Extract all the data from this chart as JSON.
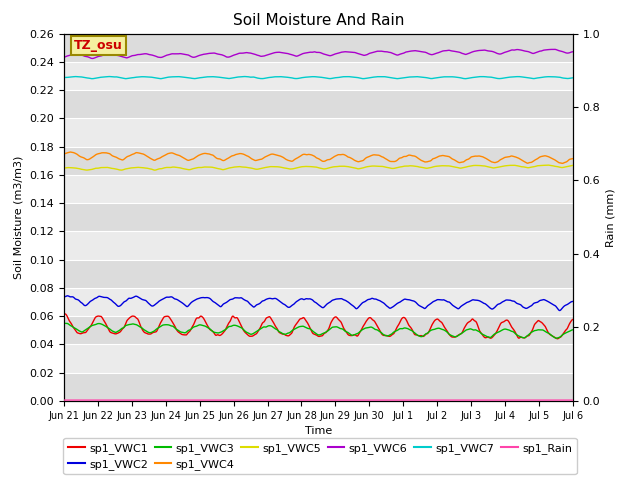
{
  "title": "Soil Moisture And Rain",
  "ylabel_left": "Soil Moisture (m3/m3)",
  "ylabel_right": "Rain (mm)",
  "xlabel": "Time",
  "ylim_left": [
    0.0,
    0.26
  ],
  "ylim_right": [
    0.0,
    1.0
  ],
  "bg_dark": "#dcdcdc",
  "bg_light": "#ebebeb",
  "station_label": "TZ_osu",
  "station_label_color": "#cc0000",
  "station_label_bg": "#f5f0a0",
  "x_tick_labels": [
    "Jun 21",
    "Jun 22",
    "Jun 23",
    "Jun 24",
    "Jun 25",
    "Jun 26",
    "Jun 27",
    "Jun 28",
    "Jun 29",
    "Jun 30",
    "Jul 1",
    "Jul 2",
    "Jul 3",
    "Jul 4",
    "Jul 5",
    "Jul 6"
  ],
  "series_order": [
    "sp1_VWC1",
    "sp1_VWC2",
    "sp1_VWC3",
    "sp1_VWC4",
    "sp1_VWC5",
    "sp1_VWC6",
    "sp1_VWC7",
    "sp1_Rain"
  ],
  "series": {
    "sp1_VWC1": {
      "color": "#ee0000",
      "base": 0.048,
      "amp": 0.013,
      "phase": 1.5,
      "trend": -0.004,
      "sharpness": 3.0
    },
    "sp1_VWC2": {
      "color": "#0000dd",
      "base": 0.067,
      "amp": 0.007,
      "phase": 1.2,
      "trend": -0.003,
      "sharpness": 1.0
    },
    "sp1_VWC3": {
      "color": "#00bb00",
      "base": 0.049,
      "amp": 0.006,
      "phase": 1.5,
      "trend": -0.005,
      "sharpness": 1.5
    },
    "sp1_VWC4": {
      "color": "#ff8800",
      "base": 0.171,
      "amp": 0.005,
      "phase": 1.0,
      "trend": -0.003,
      "sharpness": 1.5
    },
    "sp1_VWC5": {
      "color": "#dddd00",
      "base": 0.163,
      "amp": 0.002,
      "phase": 1.0,
      "trend": 0.002,
      "sharpness": 1.0
    },
    "sp1_VWC6": {
      "color": "#aa00cc",
      "base": 0.242,
      "amp": 0.003,
      "phase": 0.5,
      "trend": 0.004,
      "sharpness": 1.0
    },
    "sp1_VWC7": {
      "color": "#00cccc",
      "base": 0.228,
      "amp": 0.0015,
      "phase": 0.5,
      "trend": 0.0,
      "sharpness": 1.0
    },
    "sp1_Rain": {
      "color": "#ff44aa",
      "base": 0.0005,
      "amp": 0.0,
      "phase": 0.0,
      "trend": 0.0,
      "sharpness": 1.0
    }
  },
  "legend_entries": [
    {
      "label": "sp1_VWC1",
      "color": "#ee0000"
    },
    {
      "label": "sp1_VWC2",
      "color": "#0000dd"
    },
    {
      "label": "sp1_VWC3",
      "color": "#00bb00"
    },
    {
      "label": "sp1_VWC4",
      "color": "#ff8800"
    },
    {
      "label": "sp1_VWC5",
      "color": "#dddd00"
    },
    {
      "label": "sp1_VWC6",
      "color": "#aa00cc"
    },
    {
      "label": "sp1_VWC7",
      "color": "#00cccc"
    },
    {
      "label": "sp1_Rain",
      "color": "#ff44aa"
    }
  ]
}
